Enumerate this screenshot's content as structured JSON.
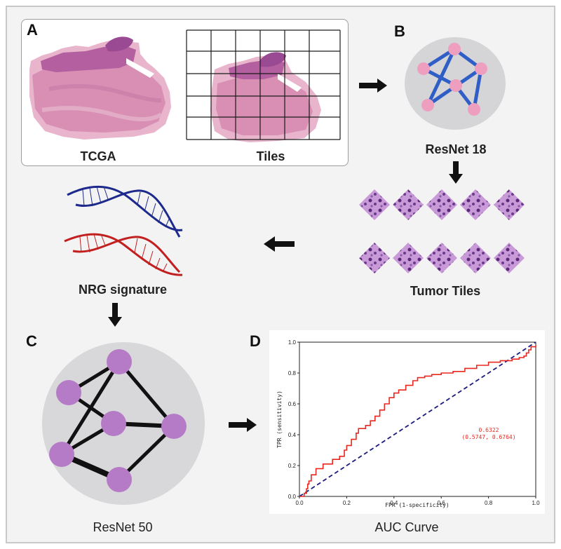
{
  "panels": {
    "a": {
      "letter": "A",
      "wsi_label": "TCGA",
      "tiles_label": "Tiles"
    },
    "b": {
      "letter": "B",
      "label": "ResNet 18"
    },
    "tumor": {
      "label": "Tumor Tiles"
    },
    "nrg": {
      "label": "NRG signature"
    },
    "c": {
      "letter": "C",
      "label": "ResNet 50"
    },
    "d": {
      "letter": "D",
      "label": "AUC Curve"
    }
  },
  "colors": {
    "node_pink": "#ee9fc0",
    "edge_blue": "#2f5ec6",
    "node_purple": "#b57bc7",
    "edge_black": "#111111",
    "dna_blue": "#1d2a8c",
    "dna_red": "#c21f1f",
    "roc_red": "#e8281e",
    "diag_navy": "#1a1a80"
  },
  "chart_data": {
    "type": "line",
    "xlabel": "FPR (1-specificity)",
    "ylabel": "TPR (sensitivity)",
    "xlim": [
      0,
      1
    ],
    "ylim": [
      0,
      1
    ],
    "xticks": [
      "0.0",
      "0.2",
      "0.4",
      "0.6",
      "0.8",
      "1.0"
    ],
    "yticks": [
      "0.0",
      "0.2",
      "0.4",
      "0.6",
      "0.8",
      "1.0"
    ],
    "auc_text": "0.6322",
    "ci_text": "(0.5747, 0.6764)",
    "series": [
      {
        "style": "step",
        "x": [
          0.0,
          0.02,
          0.03,
          0.035,
          0.04,
          0.05,
          0.07,
          0.1,
          0.14,
          0.17,
          0.19,
          0.2,
          0.22,
          0.24,
          0.25,
          0.28,
          0.3,
          0.32,
          0.34,
          0.36,
          0.38,
          0.4,
          0.42,
          0.45,
          0.48,
          0.5,
          0.53,
          0.56,
          0.6,
          0.65,
          0.7,
          0.75,
          0.8,
          0.85,
          0.9,
          0.93,
          0.95,
          0.96,
          0.97,
          0.98,
          1.0
        ],
        "y": [
          0.0,
          0.02,
          0.05,
          0.08,
          0.1,
          0.14,
          0.18,
          0.21,
          0.24,
          0.26,
          0.3,
          0.33,
          0.37,
          0.41,
          0.44,
          0.46,
          0.49,
          0.52,
          0.56,
          0.6,
          0.64,
          0.67,
          0.69,
          0.72,
          0.75,
          0.77,
          0.78,
          0.79,
          0.8,
          0.81,
          0.83,
          0.85,
          0.87,
          0.88,
          0.89,
          0.9,
          0.91,
          0.93,
          0.95,
          0.97,
          0.98
        ]
      },
      {
        "style": "dashed",
        "x": [
          0,
          1
        ],
        "y": [
          0,
          1
        ]
      }
    ]
  }
}
